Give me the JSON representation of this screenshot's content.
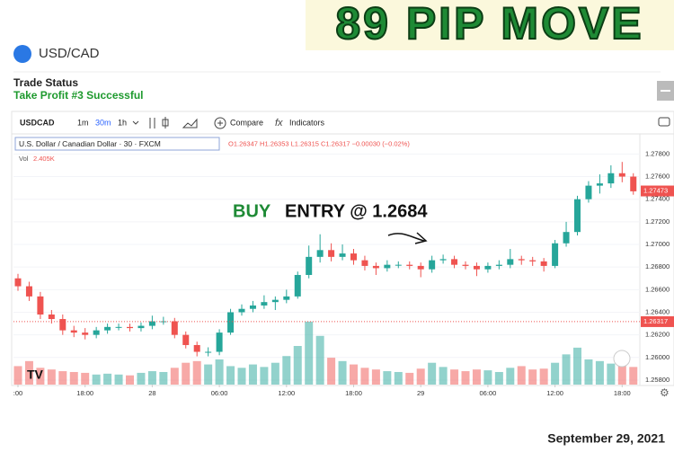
{
  "header": {
    "title": "89 PIP MOVE",
    "symbol": "USD/CAD",
    "status_label": "Trade Status",
    "status": "Take Profit #3 Successful"
  },
  "toolbar": {
    "symbol": "USDCAD",
    "intervals": [
      "1m",
      "30m",
      "1h"
    ],
    "compare": "Compare",
    "indicators": "Indicators"
  },
  "legend": {
    "name": "U.S. Dollar / Canadian Dollar · 30 · FXCM",
    "ohlc": "O1.26347 H1.26353 L1.26315 C1.26317 −0.00030 (−0.02%)",
    "volume_label": "Vol",
    "volume": "2.405K"
  },
  "chart": {
    "type": "candlestick",
    "open": [
      1.267,
      1.2663,
      1.2654,
      1.2638,
      1.2634,
      1.2624,
      1.2622,
      1.262,
      1.2624,
      1.2627,
      1.2627,
      1.2626,
      1.2628,
      1.2632,
      1.2632,
      1.262,
      1.2611,
      1.2605,
      1.2605,
      1.2622,
      1.264,
      1.2643,
      1.2646,
      1.2649,
      1.2651,
      1.2654,
      1.2673,
      1.2689,
      1.2695,
      1.2689,
      1.2692,
      1.2686,
      1.2681,
      1.2679,
      1.2682,
      1.2682,
      1.2681,
      1.2678,
      1.2686,
      1.2687,
      1.2682,
      1.2681,
      1.2678,
      1.2681,
      1.2682,
      1.2687,
      1.2686,
      1.2685,
      1.2681,
      1.2701,
      1.2711,
      1.274,
      1.2752,
      1.2754,
      1.2763,
      1.276
    ],
    "high": [
      1.2674,
      1.2667,
      1.2658,
      1.2642,
      1.2638,
      1.2628,
      1.2626,
      1.2627,
      1.263,
      1.263,
      1.263,
      1.2631,
      1.2637,
      1.2636,
      1.2635,
      1.2623,
      1.2614,
      1.2609,
      1.2625,
      1.2643,
      1.2647,
      1.265,
      1.2655,
      1.2654,
      1.266,
      1.2676,
      1.2699,
      1.2709,
      1.2701,
      1.27,
      1.2696,
      1.269,
      1.2684,
      1.2686,
      1.2685,
      1.2685,
      1.2684,
      1.269,
      1.2691,
      1.269,
      1.2685,
      1.2684,
      1.2684,
      1.2686,
      1.2696,
      1.269,
      1.2689,
      1.2688,
      1.2704,
      1.272,
      1.2743,
      1.2756,
      1.2762,
      1.277,
      1.2773,
      1.2763
    ],
    "low": [
      1.2659,
      1.265,
      1.2634,
      1.263,
      1.262,
      1.2618,
      1.2616,
      1.2617,
      1.2621,
      1.2624,
      1.2623,
      1.2623,
      1.2625,
      1.2629,
      1.2617,
      1.2608,
      1.2601,
      1.2601,
      1.2602,
      1.262,
      1.2637,
      1.264,
      1.2643,
      1.2642,
      1.2648,
      1.2652,
      1.267,
      1.2684,
      1.2685,
      1.2686,
      1.2682,
      1.2677,
      1.2673,
      1.2676,
      1.2679,
      1.2678,
      1.2671,
      1.2675,
      1.2683,
      1.2679,
      1.2678,
      1.2672,
      1.2675,
      1.2678,
      1.2679,
      1.2682,
      1.2681,
      1.2676,
      1.2679,
      1.2698,
      1.2708,
      1.2737,
      1.2745,
      1.275,
      1.2755,
      1.2744
    ],
    "close": [
      1.2663,
      1.2654,
      1.2638,
      1.2634,
      1.2624,
      1.2622,
      1.262,
      1.2624,
      1.2627,
      1.2627,
      1.2626,
      1.2628,
      1.2632,
      1.2632,
      1.262,
      1.2611,
      1.2605,
      1.2605,
      1.2622,
      1.264,
      1.2643,
      1.2646,
      1.2649,
      1.2651,
      1.2654,
      1.2673,
      1.2689,
      1.2695,
      1.2689,
      1.2692,
      1.2686,
      1.2681,
      1.2679,
      1.2682,
      1.2682,
      1.2681,
      1.2678,
      1.2686,
      1.2687,
      1.2682,
      1.2681,
      1.2678,
      1.2681,
      1.2682,
      1.2687,
      1.2686,
      1.2685,
      1.2681,
      1.2701,
      1.2711,
      1.274,
      1.2752,
      1.2754,
      1.2763,
      1.276,
      1.2747
    ],
    "volume": [
      2.2,
      2.8,
      2.0,
      1.8,
      1.6,
      1.5,
      1.4,
      1.2,
      1.3,
      1.2,
      1.1,
      1.4,
      1.6,
      1.5,
      2.0,
      2.6,
      2.8,
      2.4,
      3.0,
      2.2,
      2.0,
      2.4,
      2.1,
      2.6,
      3.4,
      4.6,
      7.5,
      5.8,
      3.2,
      2.8,
      2.4,
      2.0,
      1.8,
      1.6,
      1.5,
      1.4,
      1.9,
      2.6,
      2.1,
      1.8,
      1.6,
      1.8,
      1.7,
      1.5,
      2.0,
      2.2,
      1.8,
      1.9,
      2.6,
      3.6,
      4.4,
      3.0,
      2.8,
      2.5,
      2.4,
      2.1
    ],
    "up_color": "#26a69a",
    "down_color": "#ef5350",
    "ylim": [
      1.2576,
      1.2797
    ],
    "yticks": [
      {
        "value": 1.258,
        "label": "1.25800"
      },
      {
        "value": 1.26,
        "label": "1.26000"
      },
      {
        "value": 1.262,
        "label": "1.26200"
      },
      {
        "value": 1.264,
        "label": "1.26400"
      },
      {
        "value": 1.266,
        "label": "1.26600"
      },
      {
        "value": 1.268,
        "label": "1.26800"
      },
      {
        "value": 1.27,
        "label": "1.27000"
      },
      {
        "value": 1.272,
        "label": "1.27200"
      },
      {
        "value": 1.274,
        "label": "1.27400"
      },
      {
        "value": 1.276,
        "label": "1.27600"
      },
      {
        "value": 1.278,
        "label": "1.27800"
      }
    ],
    "xticks": [
      {
        "value": 0,
        "label": ":00"
      },
      {
        "value": 6,
        "label": "18:00"
      },
      {
        "value": 12,
        "label": "28"
      },
      {
        "value": 18,
        "label": "06:00"
      },
      {
        "value": 24,
        "label": "12:00"
      },
      {
        "value": 30,
        "label": "18:00"
      },
      {
        "value": 36,
        "label": "29"
      },
      {
        "value": 42,
        "label": "06:00"
      },
      {
        "value": 48,
        "label": "12:00"
      },
      {
        "value": 54,
        "label": "18:00"
      }
    ],
    "last_price": {
      "value": 1.26317,
      "label": "1.26317"
    },
    "price_label": {
      "value": 1.27473,
      "label": "1.27473"
    }
  },
  "annotation": {
    "buy": "BUY",
    "text": "ENTRY @ 1.2684"
  },
  "footer": {
    "date": "September 29, 2021"
  }
}
